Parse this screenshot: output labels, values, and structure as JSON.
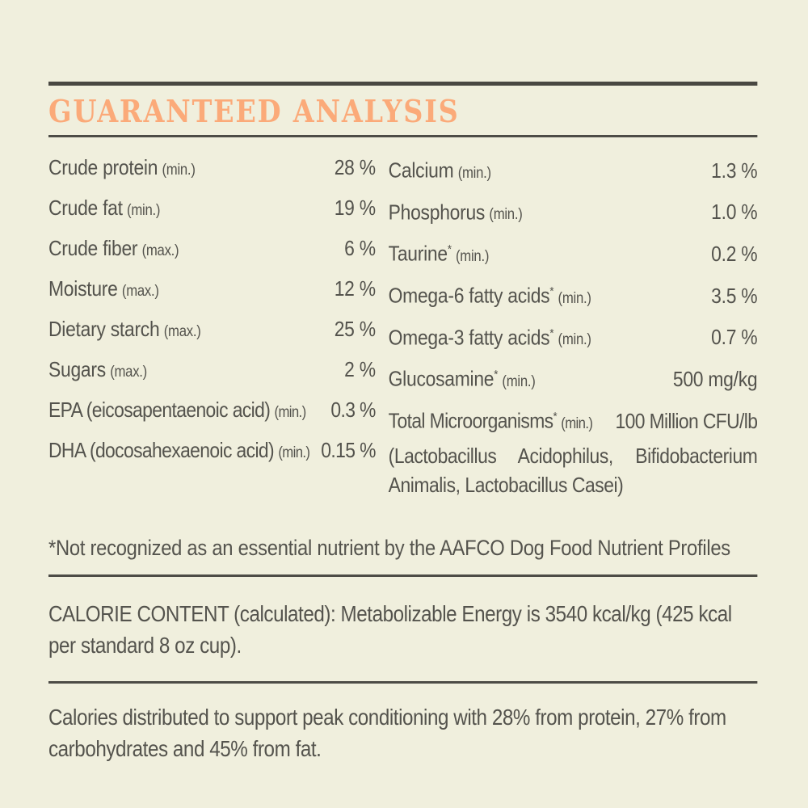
{
  "page": {
    "colors": {
      "background": "#f0efdd",
      "text": "#54534d",
      "rule": "#494842",
      "heading": "#fbaa79"
    }
  },
  "header": {
    "title": "GUARANTEED ANALYSIS"
  },
  "ga": {
    "left": [
      {
        "label": "Crude protein",
        "qualifier": "(min.)",
        "value": "28 %"
      },
      {
        "label": "Crude fat",
        "qualifier": "(min.)",
        "value": "19 %"
      },
      {
        "label": "Crude fiber",
        "qualifier": "(max.)",
        "value": "6 %"
      },
      {
        "label": "Moisture",
        "qualifier": "(max.)",
        "value": "12 %"
      },
      {
        "label": "Dietary starch",
        "qualifier": "(max.)",
        "value": "25 %"
      },
      {
        "label": "Sugars",
        "qualifier": "(max.)",
        "value": "2 %"
      },
      {
        "label": "EPA (eicosapentaenoic acid)",
        "qualifier": "(min.)",
        "value": "0.3 %"
      },
      {
        "label": "DHA (docosahexaenoic acid)",
        "qualifier": "(min.)",
        "value": "0.15 %"
      }
    ],
    "right": [
      {
        "label": "Calcium",
        "sup": "",
        "qualifier": "(min.)",
        "value": "1.3 %"
      },
      {
        "label": "Phosphorus",
        "sup": "",
        "qualifier": "(min.)",
        "value": "1.0 %"
      },
      {
        "label": "Taurine",
        "sup": "*",
        "qualifier": "(min.)",
        "value": "0.2 %"
      },
      {
        "label": "Omega-6 fatty acids",
        "sup": "*",
        "qualifier": "(min.)",
        "value": "3.5 %"
      },
      {
        "label": "Omega-3 fatty acids",
        "sup": "*",
        "qualifier": "(min.)",
        "value": "0.7 %"
      },
      {
        "label": "Glucosamine",
        "sup": "*",
        "qualifier": "(min.)",
        "value": "500 mg/kg"
      }
    ],
    "right_last": {
      "label": "Total Microorganisms",
      "sup": "*",
      "qualifier": "(min.)",
      "value": "100 Million CFU/lb",
      "detail": "(Lactobacillus Acidophilus, Bifidobacterium Animalis, Lactobacillus Casei)"
    }
  },
  "footnote": "*Not recognized as an essential nutrient by the AAFCO Dog Food Nutrient Profiles",
  "calorie_content": "CALORIE CONTENT (calculated): Metabolizable Energy is 3540 kcal/kg (425 kcal per standard 8 oz cup).",
  "calorie_distribution": "Calories distributed to support peak conditioning with 28% from protein, 27% from carbohydrates and 45% from fat."
}
